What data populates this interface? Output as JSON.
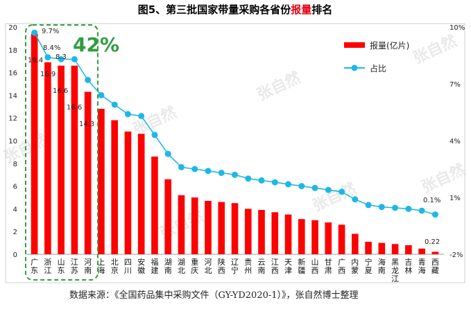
{
  "title_prefix": "图5、第三批国家带量采购各省份",
  "title_highlight": "报量",
  "title_suffix": "排名",
  "watermark": "张自然",
  "source_note": "数据来源：《全国药品集中采购文件（GY-YD2020-1）》，张自然博士整理",
  "callout_42": "42%",
  "annotations": {
    "top_share": "9.7%",
    "last_share": "0.1%",
    "last_value": "0.22",
    "v1": "19.4",
    "v2": "16.9",
    "v3": "16.6",
    "v4": "16.6",
    "v5": "14.3",
    "s2": "8.4%",
    "s3": "8.3"
  },
  "colors": {
    "bar": "#ff0000",
    "line": "#1fb7e6",
    "callout_box": "#2e9e3f"
  },
  "chart_data": {
    "type": "bar",
    "categories": [
      "广东",
      "浙江",
      "山东",
      "江苏",
      "河南",
      "上海",
      "北京",
      "四川",
      "安徽",
      "福建",
      "湖南",
      "湖北",
      "重庆",
      "河北",
      "陕西",
      "辽宁",
      "贵州",
      "云南",
      "江西",
      "天津",
      "新疆",
      "山西",
      "甘肃",
      "广西",
      "内蒙",
      "宁夏",
      "海南",
      "黑龙江",
      "吉林",
      "青海",
      "西藏"
    ],
    "series": [
      {
        "name": "报量(亿片)",
        "axis": "left",
        "values": [
          19.4,
          16.9,
          16.6,
          16.6,
          14.3,
          12.8,
          11.8,
          10.8,
          10.6,
          8.6,
          6.6,
          5.2,
          5.0,
          4.7,
          4.6,
          4.5,
          4.0,
          3.9,
          3.7,
          3.5,
          3.1,
          3.0,
          2.8,
          2.6,
          1.8,
          1.1,
          1.0,
          0.9,
          0.8,
          0.5,
          0.22
        ]
      },
      {
        "name": "占比",
        "axis": "right",
        "values": [
          9.7,
          8.4,
          8.3,
          8.3,
          7.2,
          6.4,
          5.9,
          5.4,
          5.3,
          4.3,
          3.3,
          2.6,
          2.5,
          2.4,
          2.3,
          2.2,
          2.0,
          1.9,
          1.8,
          1.7,
          1.6,
          1.5,
          1.4,
          1.3,
          0.9,
          0.6,
          0.5,
          0.45,
          0.4,
          0.3,
          0.1
        ]
      }
    ],
    "yticks_left": [
      "0",
      "2",
      "4",
      "6",
      "8",
      "10",
      "12",
      "14",
      "16",
      "18",
      "20"
    ],
    "ylim_left": [
      0,
      20
    ],
    "yticks_right": [
      "-2%",
      "1%",
      "4%",
      "7%",
      "10%"
    ],
    "ylim_right": [
      -2,
      10
    ],
    "legend_position": "top-right",
    "grid": false
  }
}
